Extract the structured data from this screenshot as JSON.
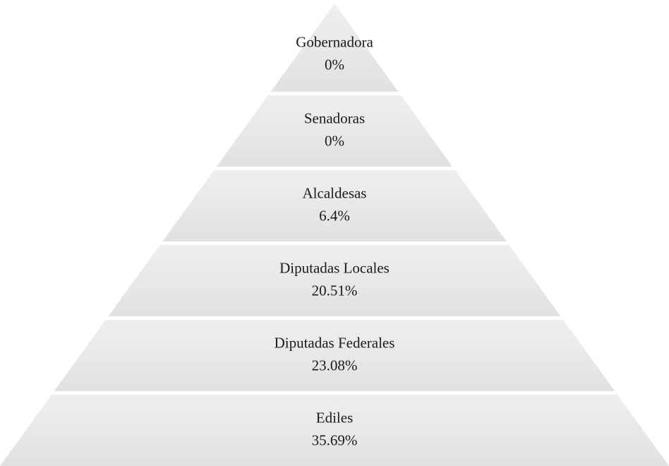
{
  "pyramid": {
    "levels": [
      {
        "label": "Gobernadora",
        "value": "0%"
      },
      {
        "label": "Senadoras",
        "value": "0%"
      },
      {
        "label": "Alcaldesas",
        "value": "6.4%"
      },
      {
        "label": "Diputadas Locales",
        "value": "20.51%"
      },
      {
        "label": "Diputadas Federales",
        "value": "23.08%"
      },
      {
        "label": "Ediles",
        "value": "35.69%"
      }
    ]
  }
}
